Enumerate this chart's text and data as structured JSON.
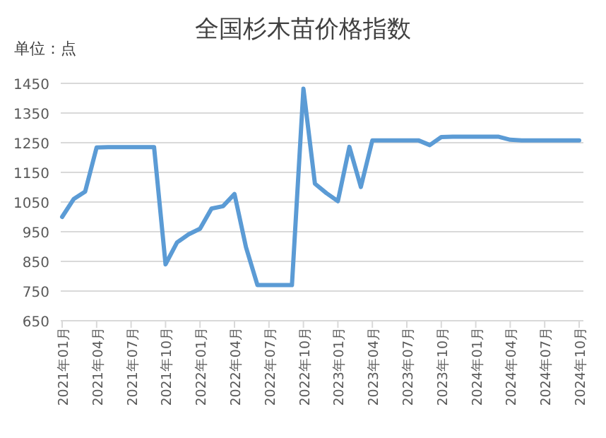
{
  "chart_data": {
    "type": "line",
    "title": "全国杉木苗价格指数",
    "ylabel": "单位：点",
    "categories": [
      "2021年01月",
      null,
      null,
      "2021年04月",
      null,
      null,
      "2021年07月",
      null,
      null,
      "2021年10月",
      null,
      null,
      "2022年01月",
      null,
      null,
      "2022年04月",
      null,
      null,
      "2022年07月",
      null,
      null,
      "2022年10月",
      null,
      null,
      "2023年01月",
      null,
      null,
      "2023年04月",
      null,
      null,
      "2023年07月",
      null,
      null,
      "2023年10月",
      null,
      null,
      "2024年01月",
      null,
      null,
      "2024年04月",
      null,
      null,
      "2024年07月",
      null,
      null,
      "2024年10月"
    ],
    "series": [
      {
        "color": "#5b9bd5",
        "values": [
          1000,
          1060,
          1085,
          1234,
          1235,
          1235,
          1235,
          1235,
          1235,
          840,
          914,
          941,
          960,
          1028,
          1036,
          1077,
          898,
          770,
          770,
          770,
          770,
          1432,
          1112,
          1080,
          1053,
          1236,
          1101,
          1258,
          1258,
          1258,
          1258,
          1258,
          1242,
          1269,
          1270,
          1270,
          1270,
          1270,
          1270,
          1260,
          1258,
          1258,
          1258,
          1258,
          1258,
          1258
        ]
      }
    ],
    "ylim": [
      650,
      1450
    ],
    "yticks": [
      650,
      750,
      850,
      950,
      1050,
      1150,
      1250,
      1350,
      1450
    ],
    "grid": "y",
    "marker": "none",
    "line_style": "solid"
  }
}
